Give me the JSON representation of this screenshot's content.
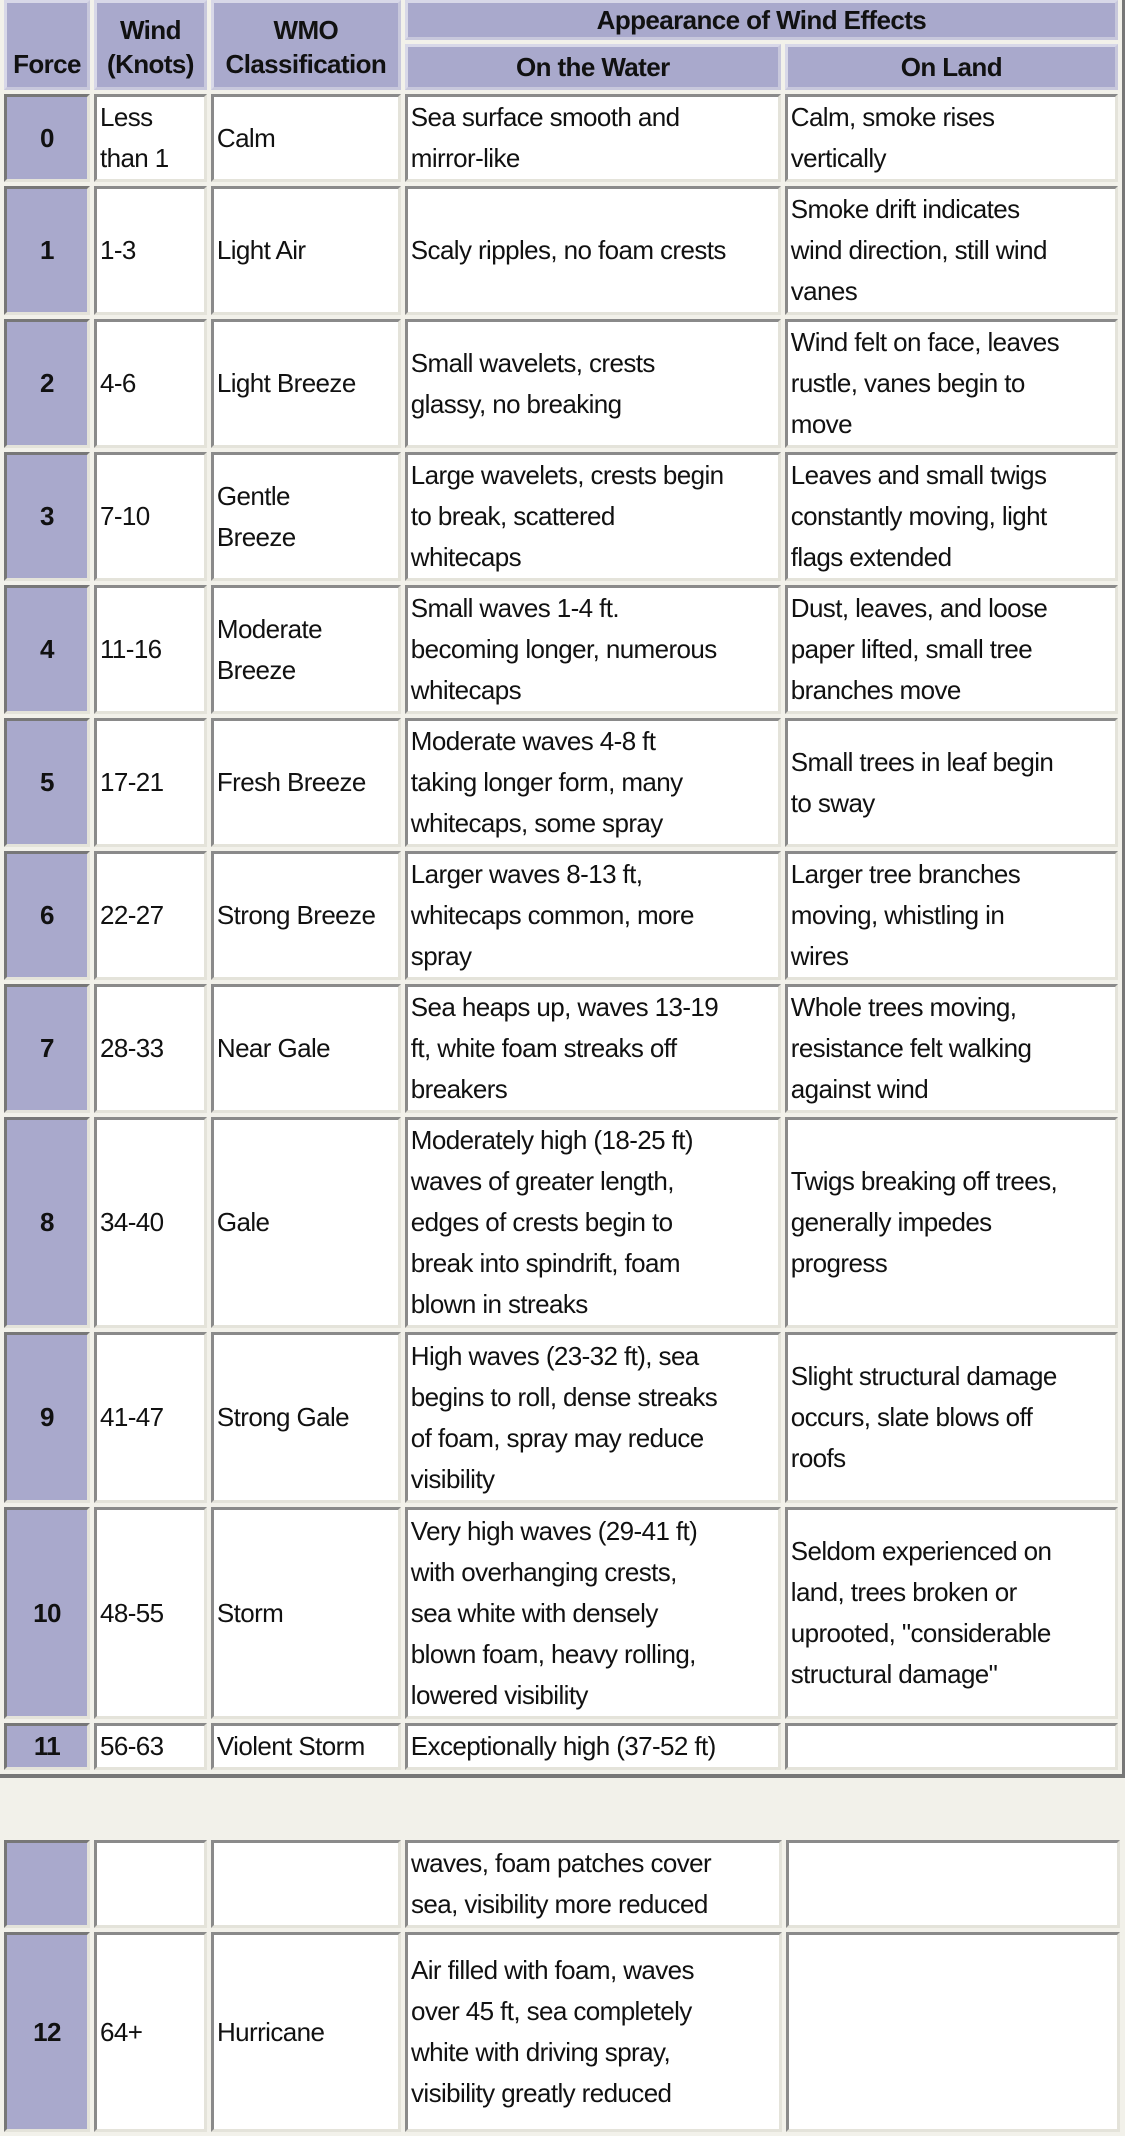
{
  "header": {
    "force": "Force",
    "wind": "Wind\n(Knots)",
    "wmo": "WMO\nClassification",
    "appearance": "Appearance of Wind Effects",
    "on_water": "On the Water",
    "on_land": "On Land"
  },
  "colors": {
    "header_bg": "#a9a9cc",
    "cell_bg": "#ffffff"
  },
  "rows": [
    {
      "force": "0",
      "wind": "Less\nthan 1",
      "wmo": "Calm",
      "water": "Sea surface smooth and\nmirror-like",
      "land": "Calm, smoke rises\nvertically"
    },
    {
      "force": "1",
      "wind": "1-3",
      "wmo": "Light Air",
      "water": "Scaly ripples, no foam crests",
      "land": "Smoke drift indicates\nwind direction, still wind\nvanes"
    },
    {
      "force": "2",
      "wind": "4-6",
      "wmo": "Light Breeze",
      "water": "Small wavelets, crests\nglassy, no breaking",
      "land": "Wind felt on face, leaves\nrustle, vanes begin to\nmove"
    },
    {
      "force": "3",
      "wind": "7-10",
      "wmo": "Gentle\nBreeze",
      "water": "Large wavelets, crests begin\nto break, scattered\nwhitecaps",
      "land": "Leaves and small twigs\nconstantly moving, light\nflags extended"
    },
    {
      "force": "4",
      "wind": "11-16",
      "wmo": "Moderate\nBreeze",
      "water": "Small waves 1-4 ft.\nbecoming longer, numerous\nwhitecaps",
      "land": "Dust, leaves, and loose\npaper lifted, small tree\nbranches move"
    },
    {
      "force": "5",
      "wind": "17-21",
      "wmo": "Fresh Breeze",
      "water": "Moderate waves 4-8 ft\ntaking longer form, many\nwhitecaps, some spray",
      "land": "Small trees in leaf begin\nto sway"
    },
    {
      "force": "6",
      "wind": "22-27",
      "wmo": "Strong Breeze",
      "water": "Larger waves 8-13 ft,\nwhitecaps common, more\nspray",
      "land": "Larger tree branches\nmoving, whistling in\nwires"
    },
    {
      "force": "7",
      "wind": "28-33",
      "wmo": "Near Gale",
      "water": "Sea heaps up, waves 13-19\nft, white foam streaks off\nbreakers",
      "land": "Whole trees moving,\nresistance felt walking\nagainst wind"
    },
    {
      "force": "8",
      "wind": "34-40",
      "wmo": "Gale",
      "water": "Moderately high (18-25 ft)\nwaves of greater length,\nedges of crests begin to\nbreak into spindrift, foam\nblown in streaks",
      "land": "Twigs breaking off trees,\ngenerally impedes\nprogress"
    },
    {
      "force": "9",
      "wind": "41-47",
      "wmo": "Strong Gale",
      "water": "High waves (23-32 ft), sea\nbegins to roll, dense streaks\nof foam, spray may reduce\nvisibility",
      "land": "Slight structural damage\noccurs, slate blows off\nroofs"
    },
    {
      "force": "10",
      "wind": "48-55",
      "wmo": "Storm",
      "water": "Very high waves (29-41 ft)\nwith overhanging crests,\nsea white with densely\nblown foam, heavy rolling,\nlowered visibility",
      "land": "Seldom experienced on\nland, trees broken or\nuprooted, \"considerable\nstructural damage\""
    },
    {
      "force": "11",
      "wind": "56-63",
      "wmo": "Violent Storm",
      "water": "Exceptionally high (37-52 ft)",
      "land": ""
    }
  ],
  "continued_rows": [
    {
      "force": "",
      "wind": "",
      "wmo": "",
      "water": "waves, foam patches cover\nsea, visibility more reduced",
      "land": ""
    },
    {
      "force": "12",
      "wind": "64+",
      "wmo": "Hurricane",
      "water": "Air filled with foam, waves\nover 45 ft, sea completely\nwhite with driving spray,\nvisibility greatly reduced",
      "land": ""
    }
  ]
}
